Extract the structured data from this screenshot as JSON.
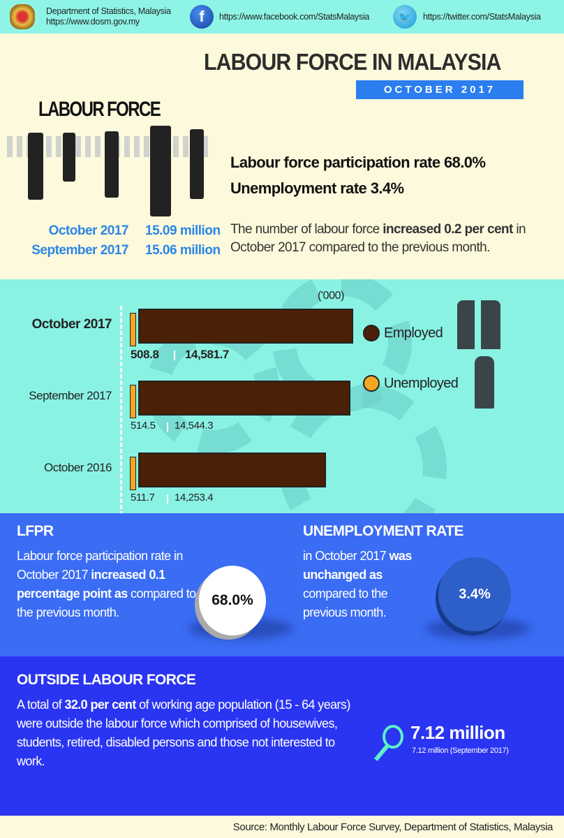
{
  "header": {
    "org": "Department of Statistics, Malaysia",
    "org_url": "https://www.dosm.gov.my",
    "facebook": "https://www.facebook.com/StatsMalaysia",
    "twitter": "https://twitter.com/StatsMalaysia",
    "facebook_icon": "f",
    "twitter_icon": "bird"
  },
  "hero": {
    "title": "LABOUR FORCE IN MALAYSIA",
    "month": "OCTOBER 2017",
    "art_label": "LABOUR FORCE",
    "lfpr_line": "Labour force participation rate 68.0%",
    "unemp_line": "Unemployment rate 3.4%",
    "totals": [
      {
        "period": "October 2017",
        "value": "15.09 million"
      },
      {
        "period": "September 2017",
        "value": "15.06 million"
      }
    ],
    "desc": {
      "pre": "The number of labour force ",
      "bold": "increased 0.2 per cent",
      "post": " in October 2017 compared to the previous month."
    }
  },
  "chart_data": {
    "type": "bar",
    "orientation": "horizontal",
    "stacked": true,
    "unit_label": "('000)",
    "categories": [
      "October 2017",
      "September 2017",
      "October 2016"
    ],
    "series": [
      {
        "name": "Unemployed",
        "values": [
          508.8,
          514.5,
          511.7
        ],
        "color": "#f5a623"
      },
      {
        "name": "Employed",
        "values": [
          14581.7,
          14544.3,
          14253.4
        ],
        "color": "#4a2006"
      }
    ],
    "value_labels": [
      [
        "508.8",
        "14,581.7"
      ],
      [
        "514.5",
        "14,544.3"
      ],
      [
        "511.7",
        "14,253.4"
      ]
    ],
    "legend": [
      "Employed",
      "Unemployed"
    ],
    "legend_placement": "right"
  },
  "lfpr": {
    "heading": "LFPR",
    "t1": "Labour force participation rate in October 2017 ",
    "b1": "increased 0.1 percentage point as",
    "t2": " compared to the previous month.",
    "value": "68.0%"
  },
  "ur": {
    "heading": "UNEMPLOYMENT RATE",
    "t1": "in October 2017 ",
    "b1": "was unchanged  as",
    "t2": " compared to the previous month.",
    "value": "3.4%"
  },
  "outside": {
    "heading": "OUTSIDE LABOUR FORCE",
    "t1": "A total of ",
    "b1": "32.0 per cent",
    "t2": " of working age population (15 - 64 years) were outside the labour force which comprised of housewives, students, retired, disabled persons and those not interested to work.",
    "value": "7.12 million",
    "prev": "7.12 million (September 2017)"
  },
  "footer": {
    "source": "Source: Monthly Labour Force Survey, Department of Statistics, Malaysia"
  },
  "colors": {
    "header": "#8ef5e6",
    "cream": "#fdf9dc",
    "teal": "#8af2e3",
    "blue": "#3a6cf4",
    "dark_blue": "#2a35f2",
    "accent": "#2b86e8"
  }
}
